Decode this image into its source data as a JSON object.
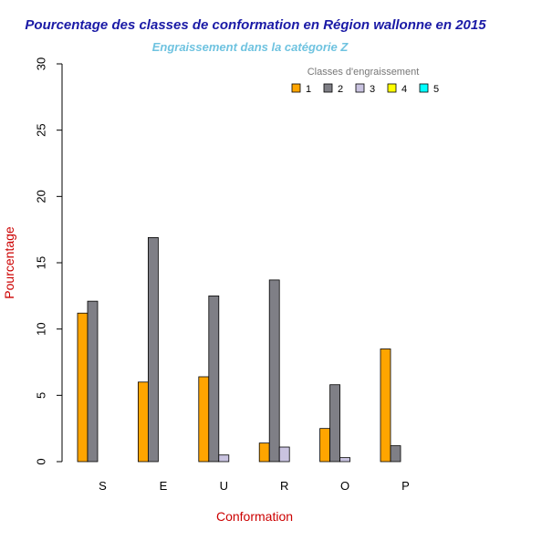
{
  "chart_data": {
    "type": "bar",
    "title": "Pourcentage des classes de conformation en Région wallonne en 2015",
    "subtitle": "Engraissement dans la catégorie Z",
    "xlabel": "Conformation",
    "ylabel": "Pourcentage",
    "ylim": [
      0,
      30
    ],
    "yticks": [
      "0",
      "5",
      "10",
      "15",
      "20",
      "25",
      "30"
    ],
    "categories": [
      "S",
      "E",
      "U",
      "R",
      "O",
      "P"
    ],
    "legend_title": "Classes d'engraissement",
    "legend_position": "top-right",
    "series": [
      {
        "name": "1",
        "color": "#FFA500",
        "values": [
          11.2,
          6.0,
          6.4,
          1.4,
          2.5,
          8.5
        ]
      },
      {
        "name": "2",
        "color": "#7F7F86",
        "values": [
          12.1,
          16.9,
          12.5,
          13.7,
          5.8,
          1.2
        ]
      },
      {
        "name": "3",
        "color": "#C9C3E0",
        "values": [
          0,
          0,
          0.5,
          1.1,
          0.3,
          0
        ]
      },
      {
        "name": "4",
        "color": "#FFFF00",
        "values": [
          0,
          0,
          0,
          0,
          0,
          0
        ]
      },
      {
        "name": "5",
        "color": "#00FFFF",
        "values": [
          0,
          0,
          0,
          0,
          0,
          0
        ]
      }
    ],
    "colors": {
      "title": "#1A1AA6",
      "subtitle": "#6FC3E0",
      "axis_title": "#CC0000",
      "legend_title": "#777777"
    },
    "grid": false
  }
}
